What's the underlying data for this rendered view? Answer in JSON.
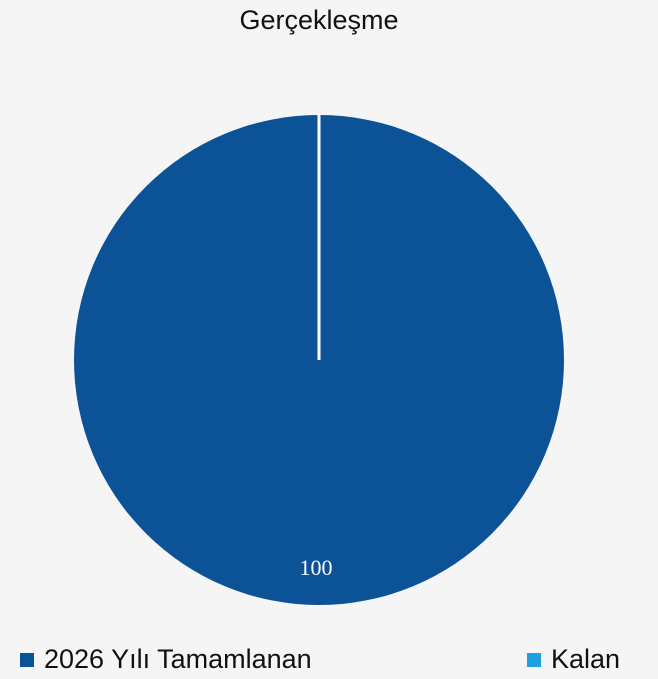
{
  "chart_data": {
    "type": "pie",
    "title": "Gerçekleşme",
    "categories": [
      "2026 Yılı Tamamlanan",
      "Kalan"
    ],
    "values": [
      100,
      0
    ],
    "colors": [
      "#0c5296",
      "#1ca0e0"
    ],
    "legend": "bottom"
  }
}
